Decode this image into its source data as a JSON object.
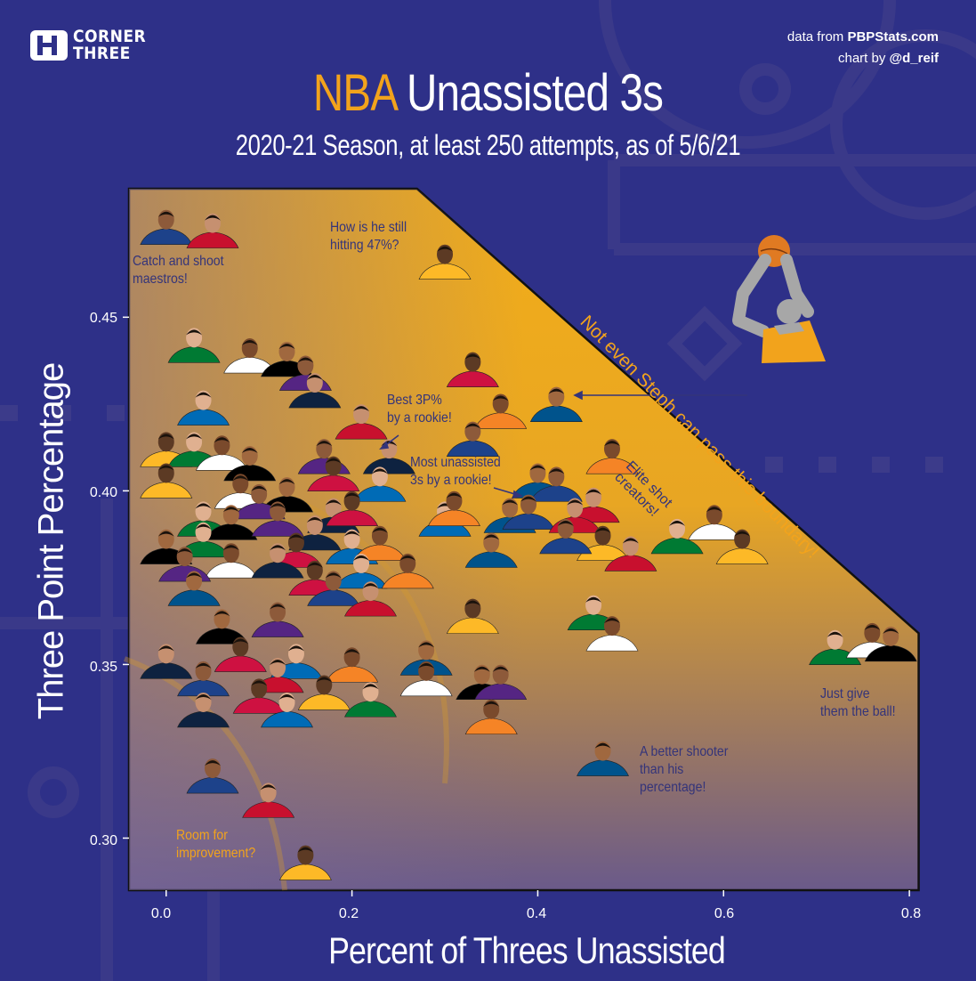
{
  "branding": {
    "logo_line1": "CORNER",
    "logo_line2": "THREE"
  },
  "credits": {
    "line1_prefix": "data from ",
    "line1_bold": "PBPStats.com",
    "line2_prefix": "chart by ",
    "line2_bold": "@d_reif"
  },
  "title": {
    "accent": "NBA",
    "rest": "Unassisted 3s"
  },
  "subtitle": "2020-21 Season, at least 250 attempts, as of 5/6/21",
  "colors": {
    "background": "#2e3088",
    "accent": "#f2a31c",
    "region_top": "#f2ad19",
    "region_bottom": "#6a5a8a",
    "annotation": "#34347a"
  },
  "chart_data": {
    "type": "scatter",
    "xlabel": "Percent of Threes Unassisted",
    "ylabel": "Three Point Percentage",
    "xlim": [
      -0.04,
      0.82
    ],
    "ylim": [
      0.285,
      0.487
    ],
    "xticks": [
      "0.0",
      "0.2",
      "0.4",
      "0.6",
      "0.8"
    ],
    "yticks": [
      "0.30",
      "0.35",
      "0.40",
      "0.45"
    ],
    "boundary": [
      [
        -0.04,
        0.487
      ],
      [
        0.27,
        0.487
      ],
      [
        0.81,
        0.359
      ],
      [
        0.81,
        0.285
      ]
    ],
    "points": [
      [
        0.0,
        0.474
      ],
      [
        0.05,
        0.473
      ],
      [
        0.3,
        0.464
      ],
      [
        0.03,
        0.44
      ],
      [
        0.09,
        0.437
      ],
      [
        0.13,
        0.436
      ],
      [
        0.15,
        0.432
      ],
      [
        0.16,
        0.427
      ],
      [
        0.33,
        0.433
      ],
      [
        0.04,
        0.422
      ],
      [
        0.36,
        0.421
      ],
      [
        0.42,
        0.423
      ],
      [
        0.33,
        0.413
      ],
      [
        0.21,
        0.418
      ],
      [
        0.0,
        0.41
      ],
      [
        0.03,
        0.41
      ],
      [
        0.06,
        0.409
      ],
      [
        0.09,
        0.406
      ],
      [
        0.17,
        0.408
      ],
      [
        0.24,
        0.408
      ],
      [
        0.18,
        0.403
      ],
      [
        0.23,
        0.4
      ],
      [
        0.48,
        0.408
      ],
      [
        0.4,
        0.401
      ],
      [
        0.42,
        0.4
      ],
      [
        0.46,
        0.394
      ],
      [
        0.0,
        0.401
      ],
      [
        0.04,
        0.39
      ],
      [
        0.08,
        0.398
      ],
      [
        0.13,
        0.397
      ],
      [
        0.1,
        0.395
      ],
      [
        0.18,
        0.391
      ],
      [
        0.2,
        0.393
      ],
      [
        0.3,
        0.39
      ],
      [
        0.31,
        0.393
      ],
      [
        0.37,
        0.391
      ],
      [
        0.39,
        0.392
      ],
      [
        0.44,
        0.391
      ],
      [
        0.47,
        0.383
      ],
      [
        0.55,
        0.385
      ],
      [
        0.59,
        0.389
      ],
      [
        0.07,
        0.389
      ],
      [
        0.12,
        0.39
      ],
      [
        0.16,
        0.386
      ],
      [
        0.14,
        0.381
      ],
      [
        0.2,
        0.382
      ],
      [
        0.23,
        0.383
      ],
      [
        0.35,
        0.381
      ],
      [
        0.43,
        0.385
      ],
      [
        0.5,
        0.38
      ],
      [
        0.62,
        0.382
      ],
      [
        0.04,
        0.384
      ],
      [
        0.07,
        0.378
      ],
      [
        0.0,
        0.382
      ],
      [
        0.02,
        0.377
      ],
      [
        0.12,
        0.378
      ],
      [
        0.16,
        0.373
      ],
      [
        0.21,
        0.375
      ],
      [
        0.26,
        0.375
      ],
      [
        0.03,
        0.37
      ],
      [
        0.18,
        0.37
      ],
      [
        0.22,
        0.367
      ],
      [
        0.33,
        0.362
      ],
      [
        0.46,
        0.363
      ],
      [
        0.48,
        0.357
      ],
      [
        0.06,
        0.359
      ],
      [
        0.12,
        0.361
      ],
      [
        0.0,
        0.349
      ],
      [
        0.08,
        0.351
      ],
      [
        0.14,
        0.349
      ],
      [
        0.2,
        0.348
      ],
      [
        0.28,
        0.35
      ],
      [
        0.04,
        0.344
      ],
      [
        0.12,
        0.345
      ],
      [
        0.17,
        0.34
      ],
      [
        0.22,
        0.338
      ],
      [
        0.28,
        0.344
      ],
      [
        0.34,
        0.343
      ],
      [
        0.36,
        0.343
      ],
      [
        0.04,
        0.335
      ],
      [
        0.1,
        0.339
      ],
      [
        0.13,
        0.335
      ],
      [
        0.35,
        0.333
      ],
      [
        0.47,
        0.321
      ],
      [
        0.05,
        0.316
      ],
      [
        0.11,
        0.309
      ],
      [
        0.15,
        0.291
      ],
      [
        0.72,
        0.353
      ],
      [
        0.76,
        0.355
      ],
      [
        0.78,
        0.354
      ]
    ],
    "annotations": [
      {
        "text": "Catch and shoot\nmaestros!",
        "x": 0.0,
        "y": 0.466
      },
      {
        "text": "How is he still\nhitting 47%?",
        "x": 0.19,
        "y": 0.479
      },
      {
        "text": "Best 3P%\nby a rookie!",
        "x": 0.24,
        "y": 0.428
      },
      {
        "text": "Most unassisted\n3s by a rookie!",
        "x": 0.25,
        "y": 0.411
      },
      {
        "text": "Elite shot\ncreators!",
        "x": 0.5,
        "y": 0.405
      },
      {
        "text": "Not even Steph can pass this boundary!",
        "x": 0.45,
        "y": 0.45
      },
      {
        "text": "Just give\nthem the ball!",
        "x": 0.72,
        "y": 0.344
      },
      {
        "text": "A better shooter\nthan his\npercentage!",
        "x": 0.51,
        "y": 0.327
      },
      {
        "text": "Room for\nimprovement?",
        "x": 0.01,
        "y": 0.305
      }
    ]
  }
}
